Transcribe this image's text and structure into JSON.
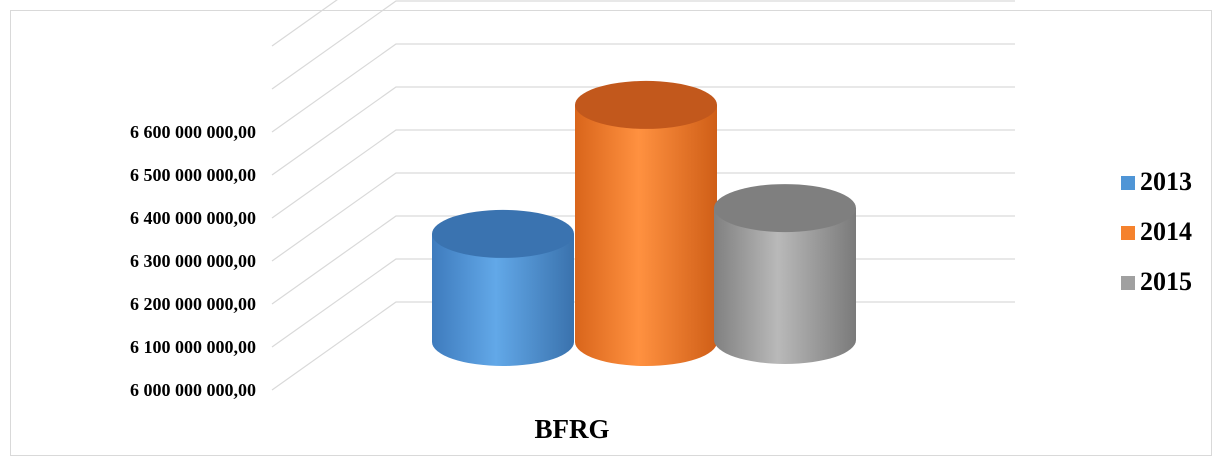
{
  "chart_data": {
    "type": "bar",
    "style": "3d-cylinder",
    "categories": [
      "BFRG"
    ],
    "series": [
      {
        "name": "2013",
        "values": [
          6270000000
        ],
        "color": "#4f95d6"
      },
      {
        "name": "2014",
        "values": [
          6570000000
        ],
        "color": "#f5822d"
      },
      {
        "name": "2015",
        "values": [
          6330000000
        ],
        "color": "#a0a0a0"
      }
    ],
    "ylim": [
      6000000000,
      6800000000
    ],
    "yticks": [
      "6 000 000 000,00",
      "6 100 000 000,00",
      "6 200 000 000,00",
      "6 300 000 000,00",
      "6 400 000 000,00",
      "6 500 000 000,00",
      "6 600 000 000,00"
    ],
    "xlabel": "BFRG",
    "legend_position": "right",
    "grid": true
  }
}
